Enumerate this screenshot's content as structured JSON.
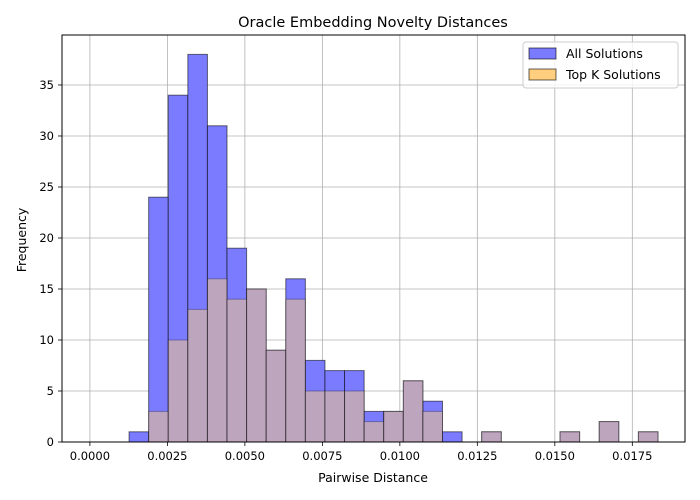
{
  "chart_data": {
    "type": "bar",
    "title": "Oracle Embedding Novelty Distances",
    "xlabel": "Pairwise Distance",
    "ylabel": "Frequency",
    "xlim": [
      -0.0009,
      0.0192
    ],
    "ylim": [
      0,
      39.9
    ],
    "xticks": [
      0.0,
      0.0025,
      0.005,
      0.0075,
      0.01,
      0.0125,
      0.015,
      0.0175
    ],
    "xtick_labels": [
      "0.0000",
      "0.0025",
      "0.0050",
      "0.0075",
      "0.0100",
      "0.0125",
      "0.0150",
      "0.0175"
    ],
    "yticks": [
      0,
      5,
      10,
      15,
      20,
      25,
      30,
      35
    ],
    "ytick_labels": [
      "0",
      "5",
      "10",
      "15",
      "20",
      "25",
      "30",
      "35"
    ],
    "grid": true,
    "legend_position": "top-right",
    "bin_width": 0.000632,
    "bin_starts": [
      0.0,
      0.000632,
      0.001264,
      0.001896,
      0.002528,
      0.00316,
      0.003792,
      0.004424,
      0.005056,
      0.005688,
      0.00632,
      0.006952,
      0.007584,
      0.008216,
      0.008848,
      0.00948,
      0.010112,
      0.010744,
      0.011376,
      0.012008,
      0.01264,
      0.013272,
      0.013904,
      0.014536,
      0.015168,
      0.0158,
      0.016432,
      0.017064,
      0.017696
    ],
    "series": [
      {
        "name": "All Solutions",
        "color": "#7b7bff",
        "values": [
          0,
          0,
          1,
          24,
          34,
          38,
          31,
          19,
          15,
          9,
          16,
          8,
          7,
          7,
          3,
          3,
          6,
          4,
          1,
          0,
          1,
          0,
          0,
          0,
          1,
          0,
          2,
          0,
          1
        ]
      },
      {
        "name": "Top K Solutions",
        "color": "#ffcf7f",
        "values": [
          0,
          0,
          0,
          3,
          10,
          13,
          16,
          14,
          15,
          9,
          14,
          5,
          5,
          5,
          2,
          3,
          6,
          3,
          0,
          0,
          1,
          0,
          0,
          0,
          1,
          0,
          2,
          0,
          1
        ]
      }
    ]
  }
}
